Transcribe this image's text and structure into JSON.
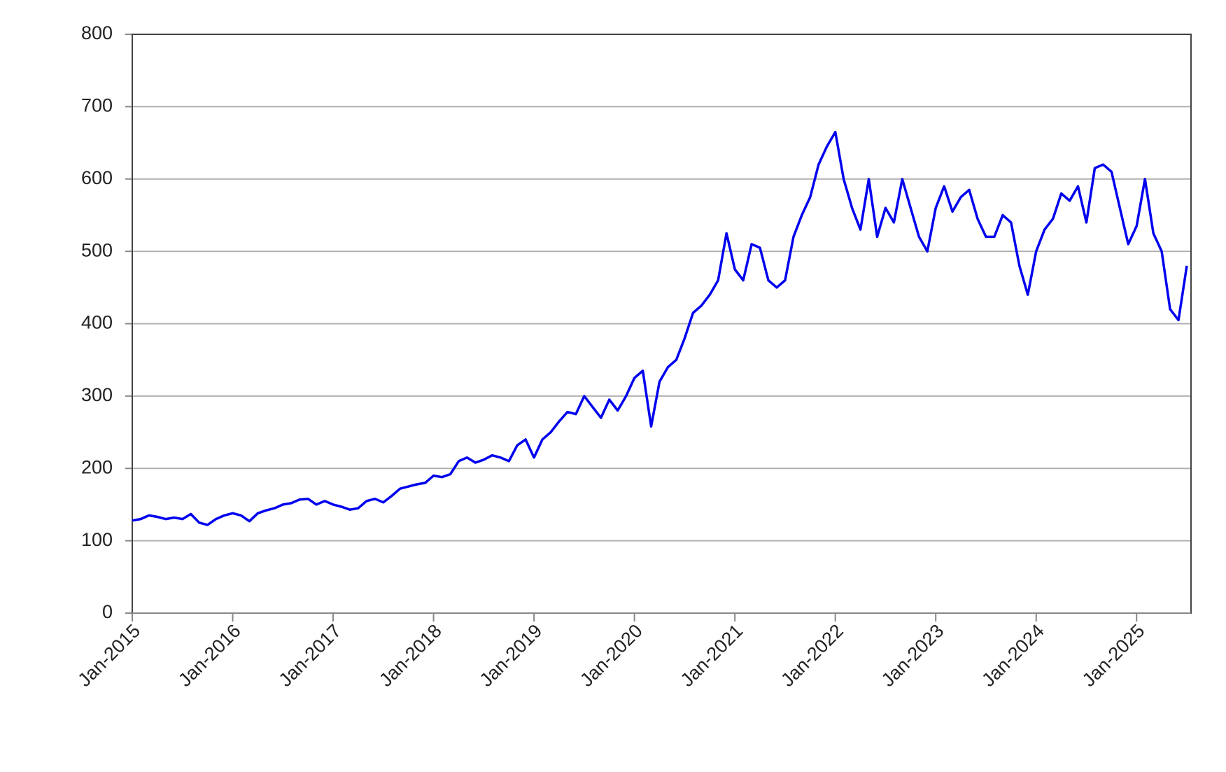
{
  "chart_data": {
    "type": "line",
    "x": [
      "2015-01",
      "2015-02",
      "2015-03",
      "2015-04",
      "2015-05",
      "2015-06",
      "2015-07",
      "2015-08",
      "2015-09",
      "2015-10",
      "2015-11",
      "2015-12",
      "2016-01",
      "2016-02",
      "2016-03",
      "2016-04",
      "2016-05",
      "2016-06",
      "2016-07",
      "2016-08",
      "2016-09",
      "2016-10",
      "2016-11",
      "2016-12",
      "2017-01",
      "2017-02",
      "2017-03",
      "2017-04",
      "2017-05",
      "2017-06",
      "2017-07",
      "2017-08",
      "2017-09",
      "2017-10",
      "2017-11",
      "2017-12",
      "2018-01",
      "2018-02",
      "2018-03",
      "2018-04",
      "2018-05",
      "2018-06",
      "2018-07",
      "2018-08",
      "2018-09",
      "2018-10",
      "2018-11",
      "2018-12",
      "2019-01",
      "2019-02",
      "2019-03",
      "2019-04",
      "2019-05",
      "2019-06",
      "2019-07",
      "2019-08",
      "2019-09",
      "2019-10",
      "2019-11",
      "2019-12",
      "2020-01",
      "2020-02",
      "2020-03",
      "2020-04",
      "2020-05",
      "2020-06",
      "2020-07",
      "2020-08",
      "2020-09",
      "2020-10",
      "2020-11",
      "2020-12",
      "2021-01",
      "2021-02",
      "2021-03",
      "2021-04",
      "2021-05",
      "2021-06",
      "2021-07",
      "2021-08",
      "2021-09",
      "2021-10",
      "2021-11",
      "2021-12",
      "2022-01",
      "2022-02",
      "2022-03",
      "2022-04",
      "2022-05",
      "2022-06",
      "2022-07",
      "2022-08",
      "2022-09",
      "2022-10",
      "2022-11",
      "2022-12",
      "2023-01",
      "2023-02",
      "2023-03",
      "2023-04",
      "2023-05",
      "2023-06",
      "2023-07",
      "2023-08",
      "2023-09",
      "2023-10",
      "2023-11",
      "2023-12",
      "2024-01",
      "2024-02",
      "2024-03",
      "2024-04",
      "2024-05",
      "2024-06",
      "2024-07",
      "2024-08",
      "2024-09",
      "2024-10",
      "2024-11",
      "2024-12",
      "2025-01",
      "2025-02",
      "2025-03",
      "2025-04",
      "2025-05",
      "2025-06",
      "2025-07"
    ],
    "series": [
      {
        "color": "#0000ee",
        "values": [
          128,
          130,
          135,
          133,
          130,
          132,
          130,
          137,
          125,
          122,
          130,
          135,
          138,
          135,
          127,
          138,
          142,
          145,
          150,
          152,
          157,
          158,
          150,
          155,
          150,
          147,
          143,
          145,
          155,
          158,
          153,
          162,
          172,
          175,
          178,
          180,
          190,
          188,
          192,
          210,
          215,
          208,
          212,
          218,
          215,
          210,
          232,
          240,
          215,
          240,
          250,
          265,
          278,
          275,
          300,
          285,
          270,
          295,
          280,
          300,
          325,
          335,
          258,
          320,
          340,
          350,
          380,
          415,
          425,
          440,
          460,
          525,
          475,
          460,
          510,
          505,
          460,
          450,
          460,
          520,
          550,
          575,
          620,
          645,
          665,
          600,
          560,
          530,
          600,
          520,
          560,
          540,
          600,
          560,
          520,
          500,
          560,
          590,
          555,
          575,
          585,
          545,
          520,
          520,
          550,
          540,
          480,
          440,
          500,
          530,
          545,
          580,
          570,
          590,
          540,
          615,
          620,
          610,
          560,
          510,
          535,
          600,
          525,
          500,
          420,
          405,
          480
        ]
      }
    ],
    "xlim": [
      "2015-01",
      "2025-07"
    ],
    "xticks": [
      {
        "value": "2015-01",
        "label": "Jan-2015"
      },
      {
        "value": "2016-01",
        "label": "Jan-2016"
      },
      {
        "value": "2017-01",
        "label": "Jan-2017"
      },
      {
        "value": "2018-01",
        "label": "Jan-2018"
      },
      {
        "value": "2019-01",
        "label": "Jan-2019"
      },
      {
        "value": "2020-01",
        "label": "Jan-2020"
      },
      {
        "value": "2021-01",
        "label": "Jan-2021"
      },
      {
        "value": "2022-01",
        "label": "Jan-2022"
      },
      {
        "value": "2023-01",
        "label": "Jan-2023"
      },
      {
        "value": "2024-01",
        "label": "Jan-2024"
      },
      {
        "value": "2025-01",
        "label": "Jan-2025"
      }
    ],
    "ylim": [
      0,
      800
    ],
    "yticks": [
      0,
      100,
      200,
      300,
      400,
      500,
      600,
      700,
      800
    ],
    "grid": true
  }
}
